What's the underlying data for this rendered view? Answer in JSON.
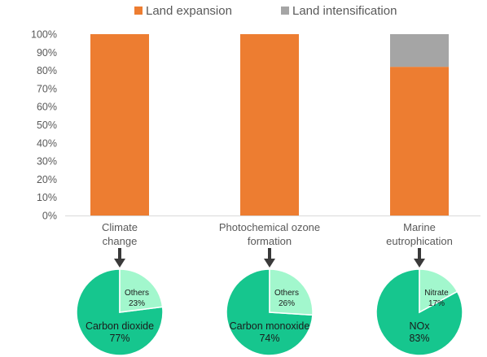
{
  "chart_data": [
    {
      "type": "bar",
      "stacked": true,
      "categories": [
        [
          "Climate",
          "change"
        ],
        [
          "Photochemical ozone",
          "formation"
        ],
        [
          "Marine",
          "eutrophication"
        ]
      ],
      "series": [
        {
          "name": "Land expansion",
          "values": [
            100,
            100,
            82
          ]
        },
        {
          "name": "Land intensification",
          "values": [
            0,
            0,
            18
          ]
        }
      ],
      "ylim": [
        0,
        100
      ],
      "y_ticks": [
        0,
        10,
        20,
        30,
        40,
        50,
        60,
        70,
        80,
        90,
        100
      ],
      "y_tick_suffix": "%",
      "grid": false,
      "legend": "top"
    },
    {
      "type": "pie",
      "slices": [
        {
          "label": "Carbon dioxide",
          "value": 77
        },
        {
          "label": "Others",
          "value": 23
        }
      ]
    },
    {
      "type": "pie",
      "slices": [
        {
          "label": "Carbon monoxide",
          "value": 74
        },
        {
          "label": "Others",
          "value": 26
        }
      ]
    },
    {
      "type": "pie",
      "slices": [
        {
          "label": "NOx",
          "value": 83
        },
        {
          "label": "Nitrate",
          "value": 17
        }
      ]
    }
  ],
  "colors": {
    "land_expansion": "#ED7D31",
    "land_intensification": "#A5A5A5",
    "pie_major": "#16C68E",
    "pie_minor": "#A2F7CD",
    "arrow": "#3A3A3A",
    "axis_text": "#595959"
  }
}
